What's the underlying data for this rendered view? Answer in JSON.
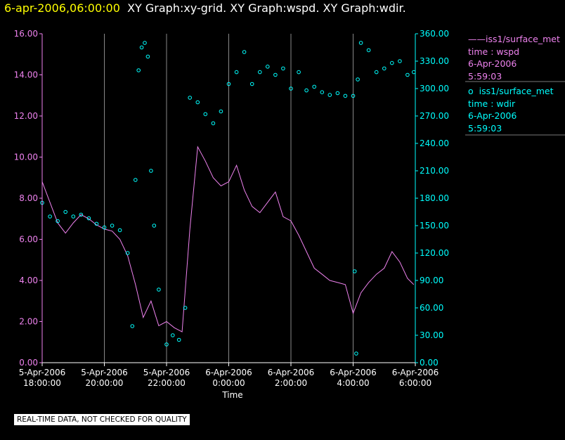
{
  "header": {
    "timestamp": "6-apr-2006,06:00:00",
    "titles": "XY Graph:xy-grid.  XY Graph:wspd.  XY Graph:wdir."
  },
  "legend": [
    {
      "marker": "——",
      "source": "iss1/surface_met",
      "field": "time : wspd",
      "date": "6-Apr-2006",
      "time": "5:59:03",
      "color": "#ee82ee"
    },
    {
      "marker": "o",
      "source": "iss1/surface_met",
      "field": "time : wdir",
      "date": "6-Apr-2006",
      "time": "5:59:03",
      "color": "#00ffff"
    }
  ],
  "note": "REAL-TIME DATA, NOT CHECKED FOR QUALITY",
  "chart_data": {
    "type": "line",
    "xlabel": "Time",
    "x_ticks": [
      {
        "date": "5-Apr-2006",
        "time": "18:00:00",
        "h": 18
      },
      {
        "date": "5-Apr-2006",
        "time": "20:00:00",
        "h": 20
      },
      {
        "date": "5-Apr-2006",
        "time": "22:00:00",
        "h": 22
      },
      {
        "date": "6-Apr-2006",
        "time": "0:00:00",
        "h": 24
      },
      {
        "date": "6-Apr-2006",
        "time": "2:00:00",
        "h": 26
      },
      {
        "date": "6-Apr-2006",
        "time": "4:00:00",
        "h": 28
      },
      {
        "date": "6-Apr-2006",
        "time": "6:00:00",
        "h": 30
      }
    ],
    "xlim_hours": [
      18,
      30
    ],
    "y_left": {
      "ticks": [
        "0.00",
        "2.00",
        "4.00",
        "6.00",
        "8.00",
        "10.00",
        "12.00",
        "14.00",
        "16.00"
      ],
      "ylim": [
        0,
        16
      ],
      "color": "#ee82ee"
    },
    "y_right": {
      "ticks": [
        "0.00",
        "30.00",
        "60.00",
        "90.00",
        "120.00",
        "150.00",
        "180.00",
        "210.00",
        "240.00",
        "270.00",
        "300.00",
        "330.00",
        "360.00"
      ],
      "ylim": [
        0,
        360
      ],
      "color": "#00ffff"
    },
    "grid": "vertical",
    "series": [
      {
        "name": "iss1/surface_met time : wspd",
        "axis": "left",
        "style": "line",
        "color": "#ee82ee",
        "x": [
          18.0,
          18.25,
          18.5,
          18.75,
          19.0,
          19.25,
          19.5,
          19.75,
          20.0,
          20.25,
          20.5,
          20.75,
          21.0,
          21.25,
          21.5,
          21.75,
          22.0,
          22.25,
          22.5,
          22.75,
          23.0,
          23.25,
          23.5,
          23.75,
          24.0,
          24.25,
          24.5,
          24.75,
          25.0,
          25.25,
          25.5,
          25.75,
          26.0,
          26.25,
          26.5,
          26.75,
          27.0,
          27.25,
          27.5,
          27.75,
          28.0,
          28.25,
          28.5,
          28.75,
          29.0,
          29.25,
          29.5,
          29.75,
          29.95
        ],
        "y": [
          8.8,
          7.8,
          6.8,
          6.3,
          6.8,
          7.2,
          7.0,
          6.7,
          6.5,
          6.4,
          6.0,
          5.2,
          3.8,
          2.2,
          3.0,
          1.8,
          2.0,
          1.7,
          1.5,
          6.5,
          10.5,
          9.8,
          9.0,
          8.6,
          8.8,
          9.6,
          8.4,
          7.6,
          7.3,
          7.8,
          8.3,
          7.1,
          6.9,
          6.2,
          5.4,
          4.6,
          4.3,
          4.0,
          3.9,
          3.8,
          2.4,
          3.4,
          3.9,
          4.3,
          4.6,
          5.4,
          4.9,
          4.1,
          3.8
        ]
      },
      {
        "name": "iss1/surface_met time : wdir",
        "axis": "right",
        "style": "markers",
        "color": "#00ffff",
        "x": [
          18.0,
          18.25,
          18.5,
          18.75,
          19.0,
          19.25,
          19.5,
          19.75,
          20.0,
          20.25,
          20.5,
          20.75,
          20.9,
          21.0,
          21.1,
          21.2,
          21.3,
          21.4,
          21.5,
          21.6,
          21.75,
          22.0,
          22.2,
          22.4,
          22.6,
          22.75,
          23.0,
          23.25,
          23.5,
          23.75,
          24.0,
          24.25,
          24.5,
          24.75,
          25.0,
          25.25,
          25.5,
          25.75,
          26.0,
          26.25,
          26.5,
          26.75,
          27.0,
          27.25,
          27.5,
          27.75,
          28.0,
          28.05,
          28.1,
          28.15,
          28.25,
          28.5,
          28.75,
          29.0,
          29.25,
          29.5,
          29.75,
          29.95
        ],
        "y": [
          175,
          160,
          155,
          165,
          160,
          162,
          158,
          152,
          148,
          150,
          145,
          120,
          40,
          200,
          320,
          345,
          350,
          335,
          210,
          150,
          80,
          20,
          30,
          25,
          60,
          290,
          285,
          272,
          262,
          275,
          305,
          318,
          340,
          305,
          318,
          324,
          315,
          322,
          300,
          318,
          298,
          302,
          296,
          293,
          295,
          292,
          292,
          100,
          10,
          310,
          350,
          342,
          318,
          322,
          328,
          330,
          315,
          318
        ]
      }
    ]
  }
}
